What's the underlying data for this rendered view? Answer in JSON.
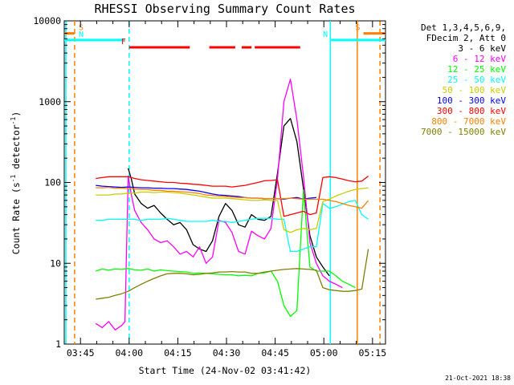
{
  "chart_data": {
    "type": "line",
    "title": "RHESSI Observing Summary Count Rates",
    "xlabel": "Start Time (24-Nov-02 03:41:42)",
    "ylabel_prefix": "Count Rate (s",
    "ylabel_exp": "-1",
    "ylabel_mid": " detector",
    "ylabel_exp2": "-1",
    "ylabel_suffix": ")",
    "x_unit": "minutes after 03:41:42",
    "xlim": [
      -1.7,
      97.3
    ],
    "ylim": [
      1,
      10000
    ],
    "yscale": "log",
    "x_ticks": [
      {
        "x": 3.3,
        "label": "03:45"
      },
      {
        "x": 18.3,
        "label": "04:00"
      },
      {
        "x": 33.3,
        "label": "04:15"
      },
      {
        "x": 48.3,
        "label": "04:30"
      },
      {
        "x": 63.3,
        "label": "04:45"
      },
      {
        "x": 78.3,
        "label": "05:00"
      },
      {
        "x": 93.3,
        "label": "05:15"
      }
    ],
    "y_ticks": [
      {
        "y": 1,
        "label": "1"
      },
      {
        "y": 10,
        "label": "10"
      },
      {
        "y": 100,
        "label": "100"
      },
      {
        "y": 1000,
        "label": "1000"
      },
      {
        "y": 10000,
        "label": "10000"
      }
    ],
    "legend_header": [
      "Det 1,3,4,5,6,9,",
      "FDecim 2, Att 0"
    ],
    "legend_placement": "right",
    "series": [
      {
        "name": "3 - 6 keV",
        "color": "#000000",
        "x": [
          0,
          2,
          4,
          6,
          8,
          10,
          12,
          14,
          16,
          17,
          18,
          19,
          20,
          22,
          24,
          26,
          28,
          30,
          32,
          34,
          36,
          38,
          40,
          42,
          44,
          46,
          48,
          50,
          52,
          54,
          56,
          58,
          60,
          62,
          64,
          66,
          68,
          70,
          72,
          74,
          76,
          78,
          80,
          81
        ],
        "values": [
          null,
          null,
          null,
          null,
          null,
          null,
          null,
          null,
          null,
          null,
          150,
          110,
          72,
          55,
          48,
          52,
          42,
          35,
          30,
          32,
          26,
          17,
          15,
          14,
          19,
          38,
          55,
          45,
          30,
          28,
          40,
          35,
          34,
          38,
          130,
          500,
          620,
          320,
          85,
          22,
          12,
          9,
          7,
          null
        ]
      },
      {
        "name": "6 - 12 keV",
        "color": "#ff00ff",
        "x": [
          0,
          2,
          4,
          6,
          8,
          10,
          12,
          14,
          16,
          17,
          18,
          19,
          20,
          22,
          24,
          26,
          28,
          30,
          32,
          34,
          36,
          38,
          40,
          42,
          44,
          46,
          48,
          50,
          52,
          54,
          56,
          58,
          60,
          62,
          64,
          66,
          68,
          70,
          72,
          74,
          76,
          78,
          80,
          82,
          84,
          86,
          88,
          90
        ],
        "values": [
          null,
          null,
          null,
          null,
          1.8,
          1.6,
          1.9,
          1.5,
          1.7,
          1.9,
          120,
          70,
          45,
          32,
          26,
          20,
          18,
          19,
          16,
          13,
          14,
          12,
          16,
          10,
          12,
          34,
          32,
          24,
          14,
          13,
          25,
          22,
          20,
          27,
          110,
          1000,
          1900,
          600,
          120,
          18,
          10,
          7,
          6,
          5.5,
          5,
          null,
          null,
          null
        ]
      },
      {
        "name": "12 - 25 keV",
        "color": "#00ff00",
        "x": [
          0,
          2,
          4,
          6,
          8,
          10,
          12,
          14,
          16,
          18,
          20,
          22,
          24,
          26,
          28,
          30,
          32,
          34,
          36,
          38,
          40,
          42,
          44,
          46,
          48,
          50,
          52,
          54,
          56,
          58,
          60,
          62,
          64,
          66,
          68,
          70,
          72,
          74,
          76,
          78,
          80,
          82,
          84,
          86,
          88
        ],
        "values": [
          null,
          null,
          null,
          null,
          8,
          8.5,
          8.2,
          8.5,
          8.4,
          8.6,
          8.3,
          8.2,
          8.5,
          8,
          8.3,
          8.1,
          8,
          7.9,
          7.8,
          7.5,
          7.6,
          7.5,
          7.4,
          7.3,
          7.2,
          7.2,
          7,
          7.1,
          7,
          7.5,
          7.6,
          8,
          6,
          3,
          2.2,
          2.6,
          80,
          9,
          8,
          8,
          8,
          7,
          6,
          5.5,
          5
        ]
      },
      {
        "name": "25 - 50 keV",
        "color": "#00ffff",
        "x": [
          0,
          2,
          4,
          6,
          8,
          10,
          12,
          14,
          16,
          18,
          20,
          22,
          24,
          26,
          28,
          30,
          32,
          34,
          36,
          38,
          40,
          42,
          44,
          46,
          48,
          50,
          52,
          54,
          56,
          58,
          60,
          62,
          64,
          66,
          68,
          70,
          72,
          74,
          76,
          78,
          80,
          82,
          84,
          86,
          88,
          90,
          92
        ],
        "values": [
          null,
          null,
          null,
          null,
          34,
          34,
          35,
          35,
          35,
          35,
          35,
          34,
          35,
          35,
          35,
          36,
          35,
          34,
          33,
          33,
          33,
          33,
          34,
          33,
          33,
          32,
          33,
          34,
          35,
          36,
          36,
          36,
          35,
          35,
          14,
          14,
          15,
          16,
          16,
          55,
          48,
          50,
          54,
          58,
          60,
          40,
          35
        ]
      },
      {
        "name": "50 - 100 keV",
        "color": "#cccc00",
        "x": [
          0,
          2,
          4,
          6,
          8,
          10,
          12,
          14,
          16,
          18,
          20,
          22,
          24,
          26,
          28,
          30,
          32,
          34,
          36,
          38,
          40,
          42,
          44,
          46,
          48,
          50,
          52,
          54,
          56,
          58,
          60,
          62,
          64,
          66,
          68,
          70,
          72,
          74,
          76,
          78,
          80,
          82,
          84,
          86,
          88,
          90,
          92
        ],
        "values": [
          null,
          null,
          null,
          null,
          70,
          70,
          70,
          72,
          72,
          74,
          74,
          76,
          76,
          75,
          76,
          76,
          75,
          74,
          72,
          70,
          68,
          66,
          64,
          64,
          64,
          63,
          62,
          61,
          60,
          60,
          61,
          60,
          60,
          26,
          24,
          26,
          27,
          26,
          27,
          58,
          62,
          68,
          73,
          78,
          82,
          84,
          86
        ]
      },
      {
        "name": "100 - 300 keV",
        "color": "#0000ff",
        "x": [
          0,
          2,
          4,
          6,
          8,
          10,
          12,
          14,
          16,
          18,
          20,
          22,
          24,
          26,
          28,
          30,
          32,
          34,
          36,
          38,
          40,
          42,
          44,
          46,
          48,
          50,
          52,
          54,
          56,
          58,
          60,
          62,
          64,
          66,
          68,
          70,
          72,
          74,
          76,
          78
        ],
        "values": [
          null,
          null,
          null,
          null,
          92,
          90,
          89,
          88,
          87,
          88,
          87,
          86,
          86,
          85,
          85,
          84,
          84,
          83,
          82,
          80,
          78,
          75,
          72,
          70,
          69,
          68,
          67,
          65,
          64,
          64,
          63,
          63,
          63,
          62,
          64,
          65,
          62,
          64,
          65,
          null
        ]
      },
      {
        "name": "300 - 800 keV",
        "color": "#ff0000",
        "x": [
          0,
          2,
          4,
          6,
          8,
          10,
          12,
          14,
          16,
          18,
          20,
          22,
          24,
          26,
          28,
          30,
          32,
          34,
          36,
          38,
          40,
          42,
          44,
          46,
          48,
          50,
          52,
          54,
          56,
          58,
          60,
          62,
          64,
          66,
          68,
          70,
          72,
          74,
          76,
          78,
          80,
          82,
          84,
          86,
          88,
          90,
          92
        ],
        "values": [
          null,
          null,
          null,
          null,
          112,
          115,
          118,
          118,
          118,
          118,
          112,
          108,
          106,
          104,
          102,
          100,
          100,
          98,
          97,
          95,
          94,
          92,
          90,
          90,
          90,
          88,
          90,
          92,
          96,
          100,
          105,
          106,
          108,
          38,
          40,
          42,
          44,
          40,
          42,
          115,
          118,
          115,
          110,
          105,
          102,
          104,
          120
        ]
      },
      {
        "name": "800 - 7000 keV",
        "color": "#ff8000",
        "x": [
          0,
          2,
          4,
          6,
          8,
          10,
          12,
          14,
          16,
          18,
          20,
          22,
          24,
          26,
          28,
          30,
          32,
          34,
          36,
          38,
          40,
          42,
          44,
          46,
          48,
          50,
          52,
          54,
          56,
          58,
          60,
          62,
          64,
          66,
          68,
          70,
          72,
          74,
          76,
          78,
          80,
          82,
          84,
          86,
          88,
          90,
          92
        ],
        "values": [
          null,
          null,
          null,
          null,
          86,
          86,
          87,
          85,
          85,
          84,
          83,
          82,
          82,
          80,
          80,
          78,
          78,
          77,
          76,
          75,
          73,
          70,
          69,
          68,
          67,
          66,
          65,
          65,
          64,
          64,
          63,
          63,
          63,
          63,
          64,
          63,
          62,
          62,
          62,
          62,
          60,
          58,
          55,
          52,
          50,
          48,
          60
        ]
      },
      {
        "name": "7000 - 15000 keV",
        "color": "#808000",
        "x": [
          0,
          2,
          4,
          6,
          8,
          10,
          12,
          14,
          16,
          18,
          20,
          22,
          24,
          26,
          28,
          30,
          32,
          34,
          36,
          38,
          40,
          42,
          44,
          46,
          48,
          50,
          52,
          54,
          56,
          58,
          60,
          62,
          64,
          66,
          68,
          70,
          72,
          74,
          76,
          78,
          80,
          82,
          84,
          86,
          88,
          90,
          92
        ],
        "values": [
          null,
          null,
          null,
          null,
          3.6,
          3.7,
          3.8,
          4,
          4.2,
          4.5,
          5,
          5.5,
          6,
          6.5,
          7,
          7.4,
          7.5,
          7.5,
          7.4,
          7.2,
          7.3,
          7.5,
          7.6,
          7.8,
          7.8,
          7.9,
          7.8,
          7.8,
          7.5,
          7.5,
          7.8,
          8,
          8.2,
          8.4,
          8.5,
          8.6,
          8.5,
          8.4,
          8.2,
          5,
          4.7,
          4.6,
          4.5,
          4.5,
          4.6,
          4.8,
          15
        ]
      }
    ],
    "flag_bars": [
      {
        "label": "S",
        "color": "#ff8000",
        "y": 7000,
        "x_start": -1.7,
        "x_end": 1.5
      },
      {
        "label": "N",
        "color": "#00ffff",
        "y": 5800,
        "x_start": -1.7,
        "x_end": 17.0
      },
      {
        "label": "S",
        "color": "#ff8000",
        "y": 7000,
        "x_start": 90.5,
        "x_end": 97.3
      },
      {
        "label": "N",
        "color": "#00ffff",
        "y": 5800,
        "x_start": 80.5,
        "x_end": 97.3
      },
      {
        "label": "F",
        "color": "#ff0000",
        "y": 4700,
        "x_start": 18.3,
        "x_end": 37.0
      },
      {
        "label": "",
        "color": "#ff0000",
        "y": 4700,
        "x_start": 43.0,
        "x_end": 51.0
      },
      {
        "label": "",
        "color": "#ff0000",
        "y": 4700,
        "x_start": 53.0,
        "x_end": 56.0
      },
      {
        "label": "",
        "color": "#ff0000",
        "y": 4700,
        "x_start": 57.0,
        "x_end": 71.0
      }
    ],
    "vertical_markers": [
      {
        "x": -1.2,
        "color": "#00ffff",
        "style": "solid"
      },
      {
        "x": 1.5,
        "color": "#ff8000",
        "style": "dashed"
      },
      {
        "x": 18.3,
        "color": "#00ffff",
        "style": "dashed"
      },
      {
        "x": 80.3,
        "color": "#00ffff",
        "style": "solid"
      },
      {
        "x": 88.6,
        "color": "#ff8000",
        "style": "solid"
      },
      {
        "x": 95.6,
        "color": "#ff8000",
        "style": "dashed"
      }
    ]
  },
  "footer": {
    "date_stamp": "21-Oct-2021 18:38"
  }
}
